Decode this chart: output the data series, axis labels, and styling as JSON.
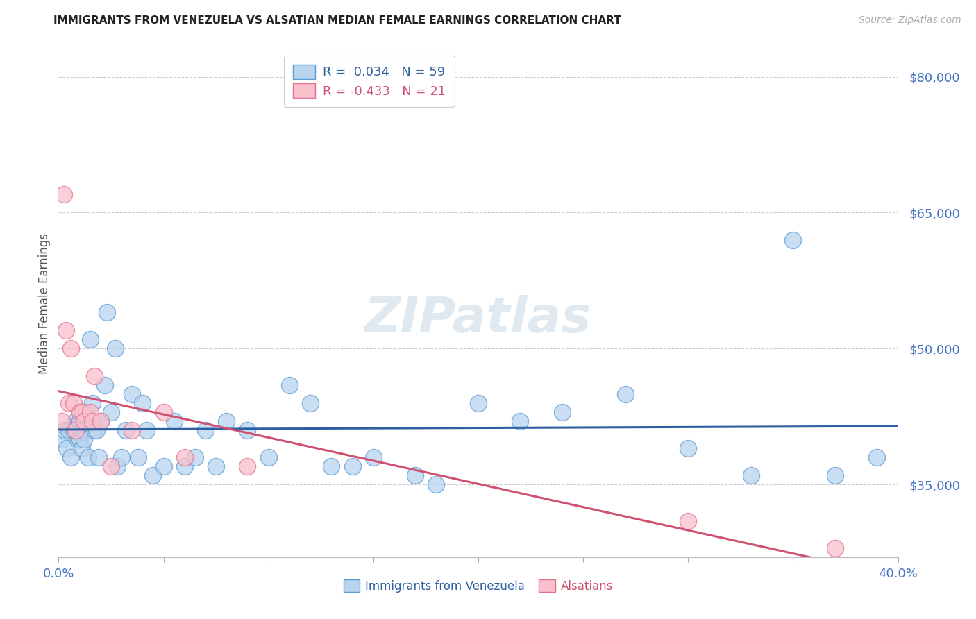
{
  "title": "IMMIGRANTS FROM VENEZUELA VS ALSATIAN MEDIAN FEMALE EARNINGS CORRELATION CHART",
  "source": "Source: ZipAtlas.com",
  "ylabel": "Median Female Earnings",
  "r_blue": 0.034,
  "n_blue": 59,
  "r_pink": -0.433,
  "n_pink": 21,
  "xlim": [
    0.0,
    40.0
  ],
  "ylim": [
    27000,
    83000
  ],
  "yticks": [
    35000,
    50000,
    65000,
    80000
  ],
  "ytick_labels": [
    "$35,000",
    "$50,000",
    "$65,000",
    "$80,000"
  ],
  "xticks": [
    0.0,
    5.0,
    10.0,
    15.0,
    20.0,
    25.0,
    30.0,
    35.0,
    40.0
  ],
  "blue_scatter_color": "#b8d4ee",
  "blue_edge_color": "#5b9bd5",
  "pink_scatter_color": "#f9c0cc",
  "pink_edge_color": "#e07090",
  "blue_line_color": "#2e5fa3",
  "pink_line_color": "#d05070",
  "title_color": "#222222",
  "source_color": "#aaaaaa",
  "axis_tick_color": "#4472c4",
  "ylabel_color": "#555555",
  "background_color": "#ffffff",
  "grid_color": "#cccccc",
  "watermark_color": "#e0e8f0",
  "blue_x": [
    0.2,
    0.3,
    0.4,
    0.5,
    0.6,
    0.7,
    0.8,
    0.9,
    1.0,
    1.0,
    1.1,
    1.1,
    1.2,
    1.3,
    1.4,
    1.5,
    1.5,
    1.6,
    1.7,
    1.8,
    1.9,
    2.0,
    2.2,
    2.3,
    2.5,
    2.7,
    2.8,
    3.0,
    3.2,
    3.5,
    3.8,
    4.0,
    4.2,
    4.5,
    5.0,
    5.5,
    6.0,
    6.5,
    7.0,
    7.5,
    8.0,
    9.0,
    10.0,
    11.0,
    12.0,
    13.0,
    14.0,
    15.0,
    17.0,
    18.0,
    20.0,
    22.0,
    24.0,
    27.0,
    30.0,
    33.0,
    35.0,
    37.0,
    39.0
  ],
  "blue_y": [
    40000,
    41000,
    39000,
    41000,
    38000,
    41000,
    42000,
    40000,
    40000,
    42000,
    39000,
    41000,
    40000,
    43000,
    38000,
    51000,
    42000,
    44000,
    41000,
    41000,
    38000,
    42000,
    46000,
    54000,
    43000,
    50000,
    37000,
    38000,
    41000,
    45000,
    38000,
    44000,
    41000,
    36000,
    37000,
    42000,
    37000,
    38000,
    41000,
    37000,
    42000,
    41000,
    38000,
    46000,
    44000,
    37000,
    37000,
    38000,
    36000,
    35000,
    44000,
    42000,
    43000,
    45000,
    39000,
    36000,
    62000,
    36000,
    38000
  ],
  "pink_x": [
    0.15,
    0.25,
    0.35,
    0.5,
    0.6,
    0.7,
    0.8,
    1.0,
    1.1,
    1.2,
    1.5,
    1.6,
    1.7,
    2.0,
    2.5,
    3.5,
    5.0,
    6.0,
    9.0,
    30.0,
    37.0
  ],
  "pink_y": [
    42000,
    67000,
    52000,
    44000,
    50000,
    44000,
    41000,
    43000,
    43000,
    42000,
    43000,
    42000,
    47000,
    42000,
    37000,
    41000,
    43000,
    38000,
    37000,
    31000,
    28000
  ]
}
